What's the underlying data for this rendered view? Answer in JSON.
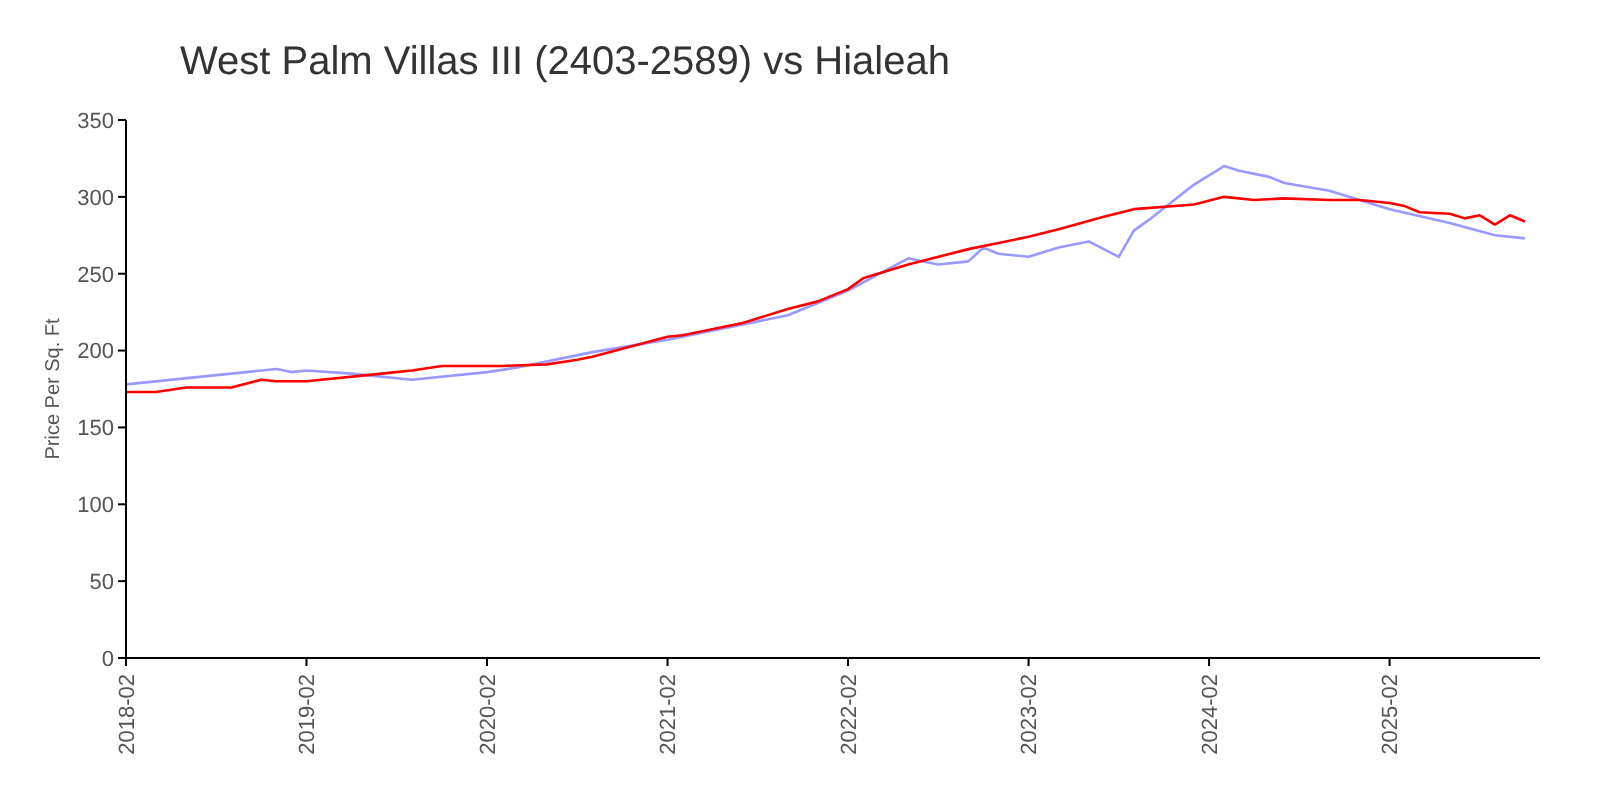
{
  "chart_data": {
    "type": "line",
    "title": "West Palm Villas III (2403-2589) vs Hialeah",
    "ylabel": "Price Per Sq. Ft",
    "xlim": [
      "2018-02",
      "2025-12"
    ],
    "xticks": [
      "2018-02",
      "2019-02",
      "2020-02",
      "2021-02",
      "2022-02",
      "2023-02",
      "2024-02",
      "2025-02"
    ],
    "ylim": [
      0,
      350
    ],
    "yticks": [
      0,
      50,
      100,
      150,
      200,
      250,
      300,
      350
    ],
    "marker": "none",
    "line_style": "solid",
    "series": [
      {
        "color": "#9999ff",
        "x": [
          "2018-02",
          "2018-12",
          "2019-01",
          "2019-02",
          "2019-05",
          "2019-09",
          "2020-02",
          "2020-04",
          "2020-09",
          "2021-02",
          "2021-07",
          "2021-10",
          "2022-02",
          "2022-06",
          "2022-07",
          "2022-08",
          "2022-10",
          "2022-11",
          "2022-12",
          "2023-02",
          "2023-04",
          "2023-06",
          "2023-08",
          "2023-09",
          "2023-10",
          "2024-01",
          "2024-03",
          "2024-04",
          "2024-06",
          "2024-07",
          "2024-10",
          "2024-12",
          "2025-02",
          "2025-06",
          "2025-09",
          "2025-11"
        ],
        "values": [
          178,
          188,
          186,
          187,
          185,
          181,
          186,
          189,
          199,
          207,
          217,
          223,
          239,
          260,
          258,
          256,
          258,
          267,
          263,
          261,
          267,
          271,
          261,
          278,
          285,
          308,
          320,
          317,
          313,
          309,
          304,
          298,
          292,
          283,
          275,
          273
        ]
      },
      {
        "color": "#ff0000",
        "x": [
          "2018-02",
          "2018-04",
          "2018-06",
          "2018-09",
          "2018-11",
          "2018-12",
          "2019-02",
          "2019-07",
          "2019-09",
          "2019-11",
          "2020-03",
          "2020-06",
          "2020-08",
          "2020-09",
          "2021-02",
          "2021-03",
          "2021-07",
          "2021-10",
          "2021-12",
          "2022-02",
          "2022-03",
          "2022-06",
          "2022-10",
          "2023-02",
          "2023-04",
          "2023-07",
          "2023-09",
          "2024-01",
          "2024-03",
          "2024-05",
          "2024-07",
          "2024-10",
          "2024-12",
          "2025-02",
          "2025-03",
          "2025-04",
          "2025-06",
          "2025-07",
          "2025-08",
          "2025-09",
          "2025-10",
          "2025-11"
        ],
        "values": [
          173,
          173,
          176,
          176,
          181,
          180,
          180,
          185,
          187,
          190,
          190,
          191,
          194,
          196,
          209,
          210,
          218,
          227,
          232,
          240,
          247,
          256,
          266,
          274,
          279,
          287,
          292,
          295,
          300,
          298,
          299,
          298,
          298,
          296,
          294,
          290,
          289,
          286,
          288,
          282,
          288,
          284
        ]
      }
    ]
  }
}
